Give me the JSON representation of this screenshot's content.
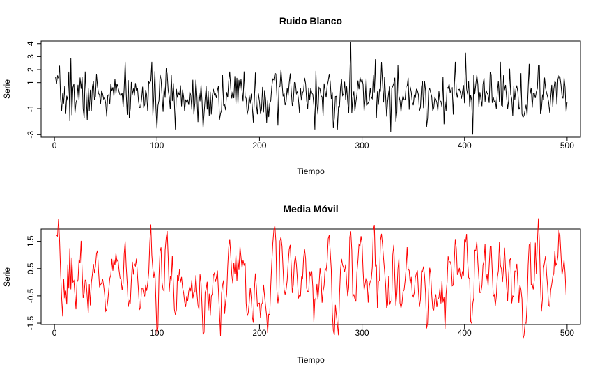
{
  "chart_data": [
    {
      "type": "line",
      "title": "Ruido Blanco",
      "xlabel": "Tiempo",
      "ylabel": "Serie",
      "xlim": [
        -13,
        513
      ],
      "ylim": [
        -3.2,
        4.2
      ],
      "xticks": [
        0,
        100,
        200,
        300,
        400,
        500
      ],
      "yticks": [
        -3,
        -1,
        1,
        2,
        3,
        4
      ],
      "grid": false,
      "color": "#000000",
      "n": 500,
      "seed": 7,
      "sd": 1.0,
      "peaks": [
        [
          16,
          2.9
        ],
        [
          289,
          4.1
        ],
        [
          313,
          2.8
        ],
        [
          401,
          3.3
        ],
        [
          408,
          -3.0
        ],
        [
          328,
          -2.8
        ],
        [
          218,
          -2.3
        ],
        [
          272,
          -2.5
        ],
        [
          363,
          -2.4
        ]
      ]
    },
    {
      "type": "line",
      "title": "Media Móvil",
      "xlabel": "Tiempo",
      "ylabel": "Serie",
      "xlim": [
        -13,
        513
      ],
      "ylim": [
        -1.55,
        1.95
      ],
      "xticks": [
        0,
        100,
        200,
        300,
        400,
        500
      ],
      "yticks": [
        -1.5,
        -0.5,
        0.5,
        1.5
      ],
      "grid": false,
      "color": "#ff0000",
      "smoothing": "3-point moving average of Ruido Blanco",
      "peaks": [
        [
          311,
          1.9
        ],
        [
          288,
          1.65
        ],
        [
          420,
          1.4
        ],
        [
          469,
          1.45
        ],
        [
          364,
          -1.5
        ],
        [
          406,
          -1.45
        ],
        [
          8,
          -1.25
        ]
      ]
    }
  ]
}
